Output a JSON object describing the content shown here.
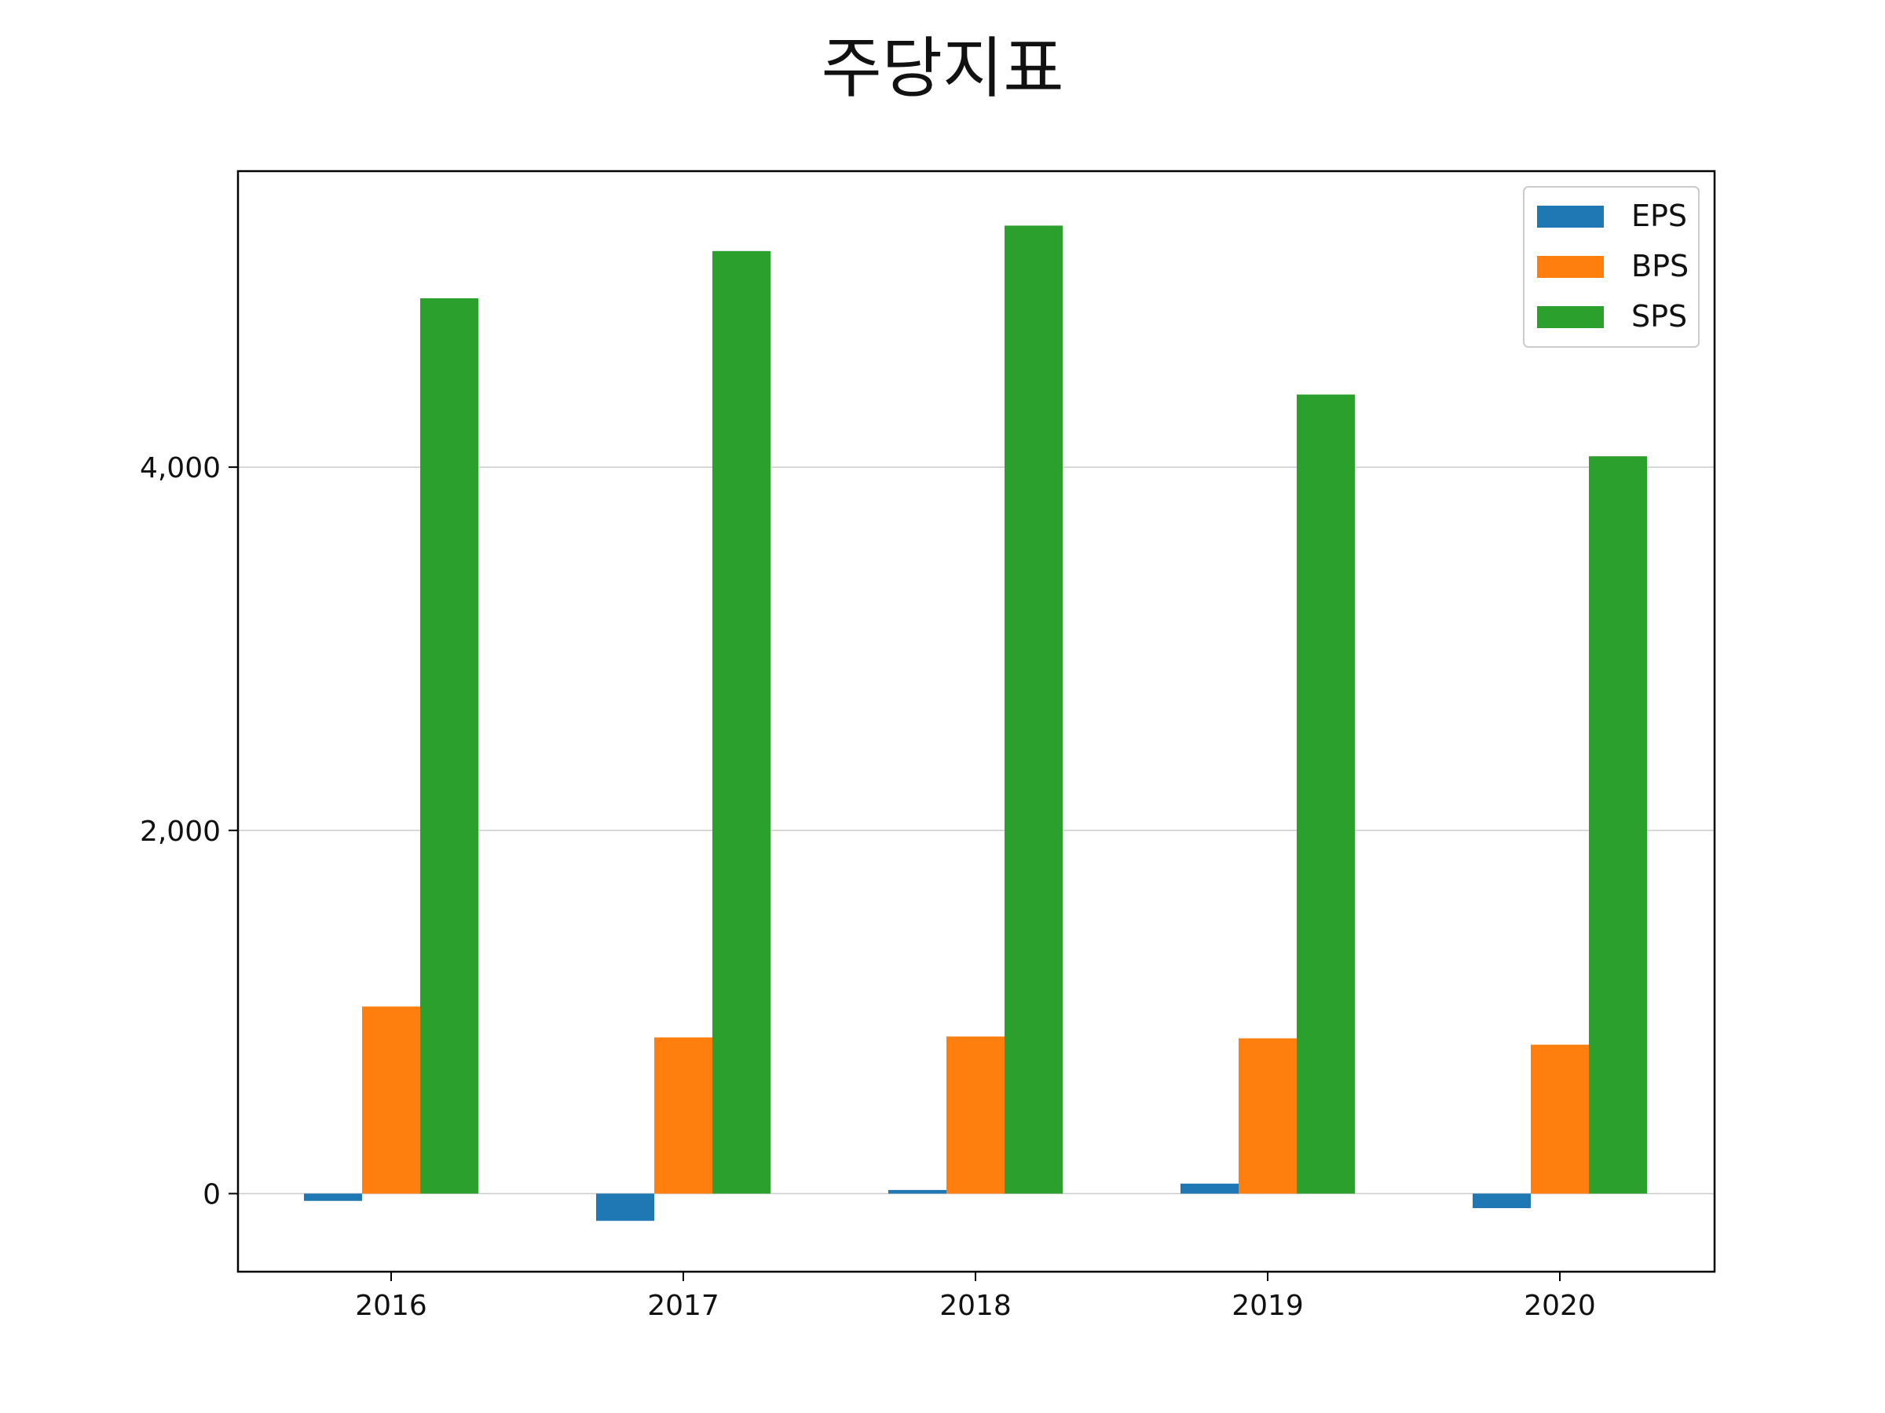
{
  "chart_data": {
    "type": "bar",
    "title": "주당지표",
    "xlabel": "",
    "ylabel": "",
    "categories": [
      "2016",
      "2017",
      "2018",
      "2019",
      "2020"
    ],
    "series": [
      {
        "name": "EPS",
        "color": "#1f77b4",
        "values": [
          -40,
          -150,
          20,
          55,
          -80
        ]
      },
      {
        "name": "BPS",
        "color": "#ff7f0e",
        "values": [
          1030,
          860,
          865,
          855,
          820
        ]
      },
      {
        "name": "SPS",
        "color": "#2ca02c",
        "values": [
          4930,
          5190,
          5330,
          4400,
          4060
        ]
      }
    ],
    "ylim": [
      -430,
      5630
    ],
    "yticks": [
      0,
      2000,
      4000
    ],
    "ytick_labels": [
      "0",
      "2,000",
      "4,000"
    ],
    "grid": "y",
    "legend": "top-right"
  }
}
